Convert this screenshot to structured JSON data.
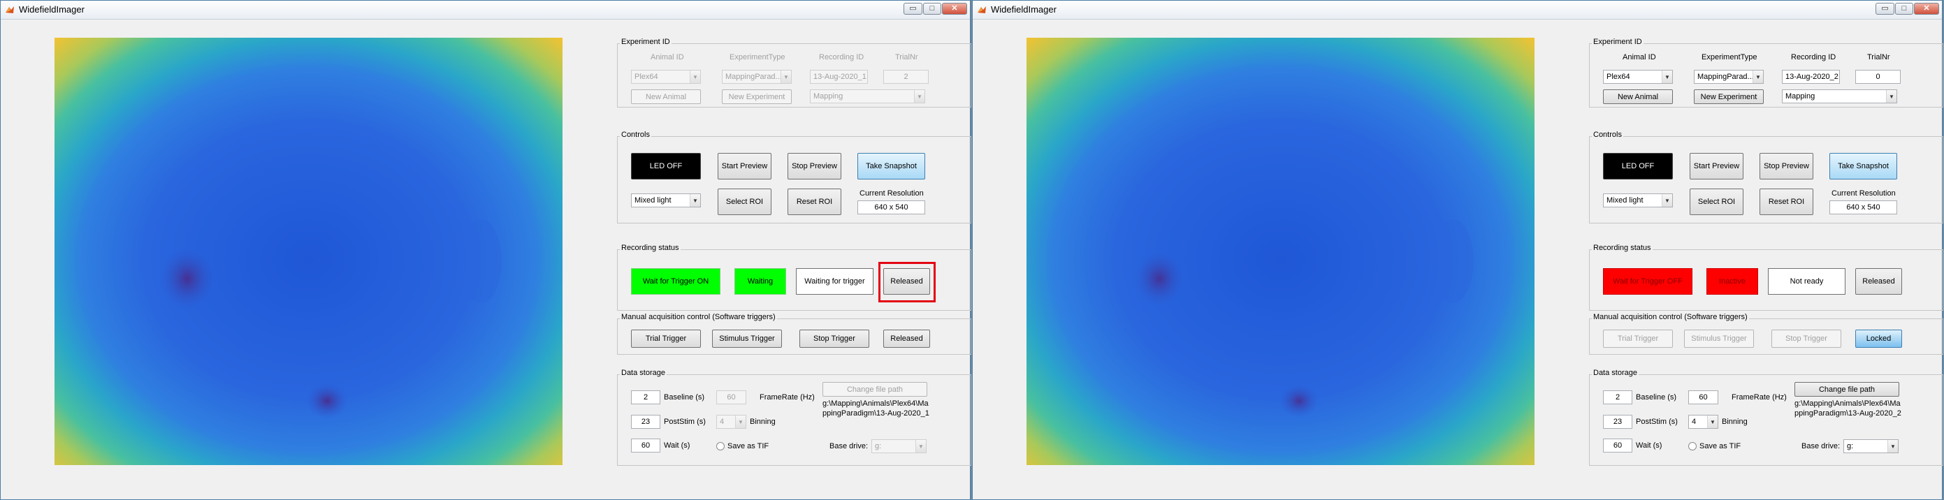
{
  "left": {
    "title": "WidefieldImager",
    "experiment": {
      "group_label": "Experiment ID",
      "animal_label": "Animal ID",
      "type_label": "ExperimentType",
      "recording_label": "Recording ID",
      "trial_label": "TrialNr",
      "animal_value": "Plex64",
      "type_value": "MappingParad...",
      "recording_value": "13-Aug-2020_1",
      "trial_value": "2",
      "new_animal": "New Animal",
      "new_experiment": "New Experiment",
      "paradigm_value": "Mapping"
    },
    "controls": {
      "group_label": "Controls",
      "led": "LED OFF",
      "start_preview": "Start Preview",
      "stop_preview": "Stop Preview",
      "take_snapshot": "Take Snapshot",
      "light_value": "Mixed light",
      "select_roi": "Select ROI",
      "reset_roi": "Reset ROI",
      "resolution_label": "Current Resolution",
      "resolution_value": "640 x 540"
    },
    "recording": {
      "group_label": "Recording status",
      "trigger": "Wait for Trigger ON",
      "state": "Waiting",
      "message": "Waiting for trigger",
      "lock": "Released"
    },
    "manual": {
      "group_label": "Manual acquisition control (Software triggers)",
      "trial": "Trial Trigger",
      "stimulus": "Stimulus Trigger",
      "stop": "Stop Trigger",
      "lock": "Released"
    },
    "storage": {
      "group_label": "Data storage",
      "baseline_value": "2",
      "baseline_label": "Baseline (s)",
      "poststim_value": "23",
      "poststim_label": "PostStim (s)",
      "wait_value": "60",
      "wait_label": "Wait (s)",
      "framerate_value": "60",
      "framerate_label": "FrameRate (Hz)",
      "binning_value": "4",
      "binning_label": "Binning",
      "tif_label": "Save as TIF",
      "change_path": "Change file path",
      "path_value": "g:\\Mapping\\Animals\\Plex64\\MappingParadigm\\13-Aug-2020_1",
      "base_drive_label": "Base drive:",
      "base_drive_value": "g:"
    }
  },
  "right": {
    "title": "WidefieldImager",
    "experiment": {
      "group_label": "Experiment ID",
      "animal_label": "Animal ID",
      "type_label": "ExperimentType",
      "recording_label": "Recording ID",
      "trial_label": "TrialNr",
      "animal_value": "Plex64",
      "type_value": "MappingParad...",
      "recording_value": "13-Aug-2020_2",
      "trial_value": "0",
      "new_animal": "New Animal",
      "new_experiment": "New Experiment",
      "paradigm_value": "Mapping"
    },
    "controls": {
      "group_label": "Controls",
      "led": "LED OFF",
      "start_preview": "Start Preview",
      "stop_preview": "Stop Preview",
      "take_snapshot": "Take Snapshot",
      "light_value": "Mixed light",
      "select_roi": "Select ROI",
      "reset_roi": "Reset ROI",
      "resolution_label": "Current Resolution",
      "resolution_value": "640 x 540"
    },
    "recording": {
      "group_label": "Recording status",
      "trigger": "Wait for Trigger OFF",
      "state": "Inactive",
      "message": "Not ready",
      "lock": "Released"
    },
    "manual": {
      "group_label": "Manual acquisition control (Software triggers)",
      "trial": "Trial Trigger",
      "stimulus": "Stimulus Trigger",
      "stop": "Stop Trigger",
      "lock": "Locked"
    },
    "storage": {
      "group_label": "Data storage",
      "baseline_value": "2",
      "baseline_label": "Baseline (s)",
      "poststim_value": "23",
      "poststim_label": "PostStim (s)",
      "wait_value": "60",
      "wait_label": "Wait (s)",
      "framerate_value": "60",
      "framerate_label": "FrameRate (Hz)",
      "binning_value": "4",
      "binning_label": "Binning",
      "tif_label": "Save as TIF",
      "change_path": "Change file path",
      "path_value": "g:\\Mapping\\Animals\\Plex64\\MappingParadigm\\13-Aug-2020_2",
      "base_drive_label": "Base drive:",
      "base_drive_value": "g:"
    }
  },
  "colors": {
    "status_green": "#00ff00",
    "status_red": "#ff0000",
    "highlight": "#e30613",
    "snapshot_blue": "#a9d9f6"
  }
}
